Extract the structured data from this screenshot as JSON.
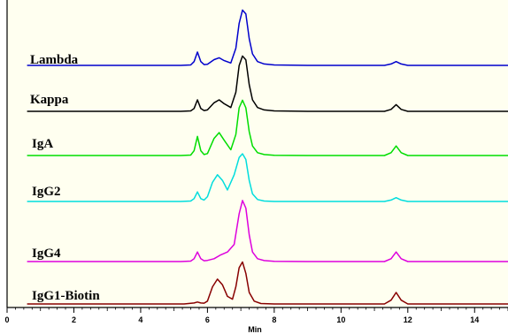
{
  "chart_data": {
    "type": "line",
    "title": "",
    "xlabel": "Min",
    "ylabel": "",
    "xlim": [
      0,
      15
    ],
    "x_ticks": [
      0,
      2,
      4,
      6,
      8,
      10,
      12,
      14
    ],
    "x_tick_labels": [
      "0",
      "2",
      "4",
      "6",
      "8",
      "10",
      "12",
      "14"
    ],
    "grid": false,
    "legend": "inline labels left",
    "background": "#fffff0",
    "series": [
      {
        "name": "Lambda",
        "color": "#0000cc",
        "x": [
          0.6,
          5.2,
          5.5,
          5.6,
          5.7,
          5.8,
          5.9,
          6.0,
          6.2,
          6.35,
          6.5,
          6.7,
          6.85,
          6.95,
          7.05,
          7.15,
          7.25,
          7.35,
          7.5,
          7.7,
          8.0,
          9.0,
          11.3,
          11.5,
          11.65,
          11.8,
          12.0,
          15.0
        ],
        "y": [
          0,
          0,
          0.5,
          4,
          14,
          4,
          0.8,
          1.2,
          6,
          8,
          5,
          2.5,
          18,
          44,
          58,
          54,
          28,
          12,
          4,
          1.5,
          0.5,
          0,
          0,
          1.5,
          4,
          1.5,
          0,
          0
        ]
      },
      {
        "name": "Kappa",
        "color": "#000000",
        "x": [
          0.6,
          5.2,
          5.5,
          5.6,
          5.7,
          5.8,
          5.9,
          6.0,
          6.2,
          6.35,
          6.5,
          6.7,
          6.85,
          6.95,
          7.05,
          7.15,
          7.25,
          7.35,
          7.5,
          7.7,
          8.0,
          9.0,
          11.3,
          11.5,
          11.65,
          11.8,
          12.0,
          15.0
        ],
        "y": [
          0,
          0,
          0.5,
          3,
          12,
          3,
          0.8,
          1.5,
          9,
          12,
          8,
          4,
          20,
          48,
          58,
          54,
          28,
          12,
          4,
          1.5,
          0.5,
          0,
          0,
          2,
          7,
          2,
          0,
          0
        ]
      },
      {
        "name": "IgA",
        "color": "#00dd00",
        "x": [
          0.6,
          5.2,
          5.5,
          5.6,
          5.7,
          5.8,
          5.9,
          6.0,
          6.2,
          6.35,
          6.5,
          6.7,
          6.85,
          6.95,
          7.05,
          7.15,
          7.25,
          7.35,
          7.5,
          7.7,
          8.0,
          9.0,
          11.3,
          11.5,
          11.65,
          11.8,
          12.0,
          15.0
        ],
        "y": [
          0,
          0,
          0.5,
          5,
          20,
          5,
          1,
          2,
          18,
          24,
          16,
          6,
          22,
          50,
          58,
          50,
          25,
          10,
          3,
          1,
          0.3,
          0,
          0,
          3,
          10,
          3,
          0,
          0
        ]
      },
      {
        "name": "IgG2",
        "color": "#00dddd",
        "x": [
          0.6,
          5.2,
          5.5,
          5.6,
          5.7,
          5.8,
          5.9,
          6.0,
          6.15,
          6.3,
          6.45,
          6.6,
          6.8,
          6.95,
          7.05,
          7.15,
          7.25,
          7.35,
          7.5,
          7.7,
          8.0,
          9.0,
          11.3,
          11.5,
          11.65,
          11.8,
          12.0,
          15.0
        ],
        "y": [
          0,
          0,
          0.5,
          3,
          10,
          3,
          1.5,
          5,
          20,
          28,
          22,
          12,
          28,
          46,
          50,
          44,
          22,
          8,
          2,
          0.5,
          0,
          0,
          0,
          1.5,
          4,
          1.5,
          0,
          0
        ]
      },
      {
        "name": "IgG4",
        "color": "#dd00dd",
        "x": [
          0.6,
          5.2,
          5.5,
          5.6,
          5.7,
          5.8,
          5.9,
          6.0,
          6.2,
          6.4,
          6.6,
          6.8,
          6.95,
          7.05,
          7.15,
          7.25,
          7.35,
          7.5,
          7.7,
          8.0,
          9.0,
          11.3,
          11.5,
          11.65,
          11.8,
          12.0,
          15.0
        ],
        "y": [
          0,
          0,
          0.5,
          3,
          10,
          3,
          0.8,
          1.2,
          3,
          7,
          10,
          18,
          50,
          64,
          56,
          28,
          10,
          3,
          1,
          0.3,
          0,
          0,
          3,
          10,
          3,
          0,
          0
        ]
      },
      {
        "name": "IgG1-Biotin",
        "color": "#880000",
        "x": [
          0.6,
          5.3,
          5.6,
          5.7,
          5.8,
          5.9,
          6.0,
          6.15,
          6.3,
          6.45,
          6.6,
          6.75,
          6.85,
          6.95,
          7.05,
          7.15,
          7.25,
          7.4,
          7.6,
          8.0,
          9.0,
          11.3,
          11.5,
          11.65,
          11.8,
          12.0,
          15.0
        ],
        "y": [
          0,
          0,
          1,
          2,
          1,
          0.8,
          3,
          18,
          26,
          20,
          8,
          5,
          18,
          38,
          44,
          32,
          12,
          3,
          0.5,
          0,
          0,
          0,
          4,
          12,
          4,
          0,
          0
        ]
      }
    ]
  }
}
